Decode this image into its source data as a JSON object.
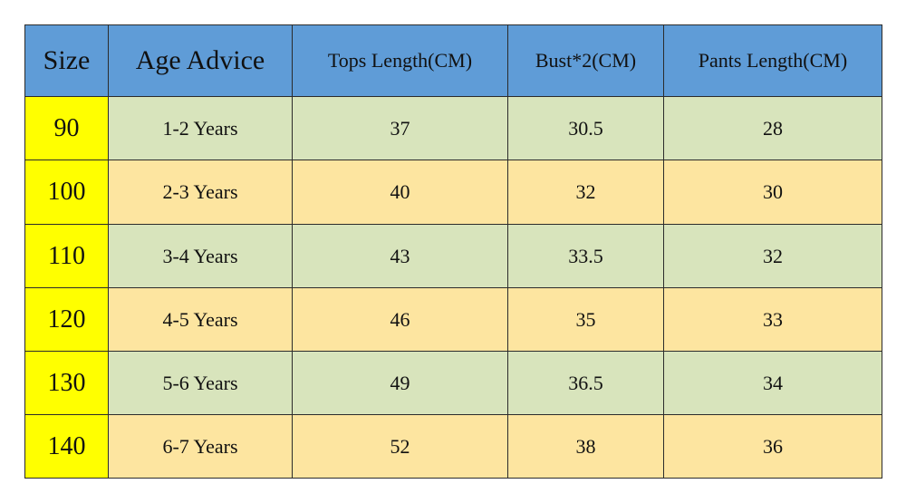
{
  "table": {
    "header": [
      "Size",
      "Age Advice",
      "Tops Length(CM)",
      "Bust*2(CM)",
      "Pants Length(CM)"
    ],
    "rows": [
      [
        90,
        "1-2 Years",
        37,
        30.5,
        28
      ],
      [
        100,
        "2-3 Years",
        40,
        32,
        30
      ],
      [
        110,
        "3-4 Years",
        43,
        33.5,
        32
      ],
      [
        120,
        "4-5 Years",
        46,
        35,
        33
      ],
      [
        130,
        "5-6 Years",
        49,
        36.5,
        34
      ],
      [
        140,
        "6-7 Years",
        52,
        38,
        36
      ]
    ]
  }
}
